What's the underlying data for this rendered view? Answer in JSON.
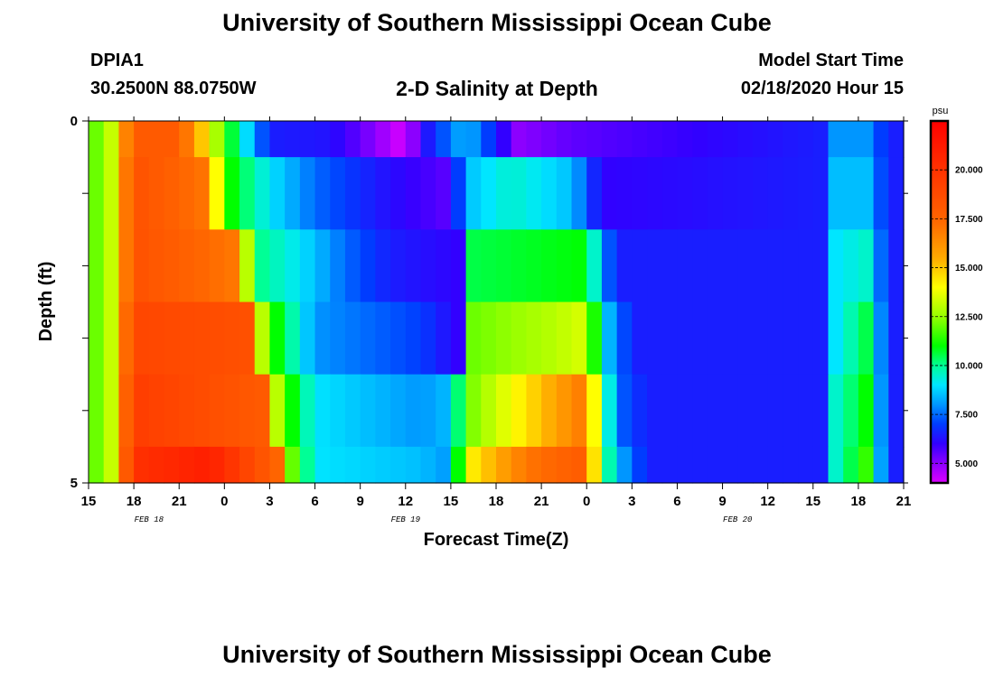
{
  "header": {
    "title": "University of Southern Mississippi Ocean Cube",
    "station": "DPIA1",
    "location": "30.2500N 88.0750W",
    "plot_title": "2-D Salinity at Depth",
    "model_label": "Model Start Time",
    "model_time": "02/18/2020 Hour 15"
  },
  "footer": {
    "title": "University of Southern Mississippi Ocean Cube"
  },
  "chart_data": {
    "type": "heatmap",
    "title": "2-D Salinity at Depth",
    "xlabel": "Forecast Time(Z)",
    "ylabel": "Depth (ft)",
    "x_ticks": [
      "15",
      "18",
      "21",
      "0",
      "3",
      "6",
      "9",
      "12",
      "15",
      "18",
      "21",
      "0",
      "3",
      "6",
      "9",
      "12",
      "15",
      "18",
      "21"
    ],
    "x_date_labels": [
      {
        "label": "FEB 18",
        "at_hour": 4
      },
      {
        "label": "FEB 19",
        "at_hour": 21
      },
      {
        "label": "FEB 20",
        "at_hour": 43
      }
    ],
    "x_range_hours": [
      0,
      54
    ],
    "y_ticks": [
      "0",
      "",
      "",
      "",
      "",
      "5"
    ],
    "ylim": [
      0,
      5
    ],
    "colorbar": {
      "unit": "psu",
      "range": [
        4,
        22.5
      ],
      "ticks": [
        5,
        7.5,
        10,
        12.5,
        15,
        17.5,
        20
      ],
      "tick_labels": [
        "5.000",
        "7.500",
        "10.000",
        "12.500",
        "15.000",
        "17.500",
        "20.000"
      ]
    },
    "rows": [
      {
        "depth": "0-0.5",
        "keys": [
          [
            0,
            11.5
          ],
          [
            1.8,
            13.5
          ],
          [
            2.8,
            18
          ],
          [
            6,
            18
          ],
          [
            8,
            14
          ],
          [
            9,
            11.5
          ],
          [
            11,
            8
          ],
          [
            12,
            6.5
          ],
          [
            16,
            6.3
          ],
          [
            19,
            5
          ],
          [
            21,
            4
          ],
          [
            22,
            6
          ],
          [
            25,
            8.5
          ],
          [
            28.5,
            5
          ],
          [
            32,
            5.5
          ],
          [
            48.5,
            6.5
          ],
          [
            49.5,
            8
          ],
          [
            51.5,
            8
          ],
          [
            53,
            6.5
          ],
          [
            54,
            6.5
          ]
        ]
      },
      {
        "depth": "0.5-1.5",
        "keys": [
          [
            0,
            11.5
          ],
          [
            1.8,
            13.5
          ],
          [
            2.8,
            18.5
          ],
          [
            7.8,
            17
          ],
          [
            8.5,
            14
          ],
          [
            9.5,
            11
          ],
          [
            12,
            9
          ],
          [
            15,
            7.5
          ],
          [
            20,
            6.2
          ],
          [
            24,
            5.5
          ],
          [
            25,
            8.5
          ],
          [
            28,
            9.5
          ],
          [
            32,
            8.5
          ],
          [
            34,
            6
          ],
          [
            48.5,
            6.5
          ],
          [
            49.5,
            8.5
          ],
          [
            51.5,
            8.5
          ],
          [
            53,
            6.5
          ],
          [
            54,
            6.5
          ]
        ]
      },
      {
        "depth": "1.5-2.5",
        "keys": [
          [
            0,
            11.5
          ],
          [
            1.8,
            13.5
          ],
          [
            2.8,
            18.5
          ],
          [
            9.5,
            17
          ],
          [
            10.5,
            13
          ],
          [
            11.5,
            10
          ],
          [
            14,
            9
          ],
          [
            17,
            7.5
          ],
          [
            20,
            6.5
          ],
          [
            24.5,
            6
          ],
          [
            25,
            10.5
          ],
          [
            33,
            11
          ],
          [
            34,
            8
          ],
          [
            35,
            6.5
          ],
          [
            48.5,
            6.5
          ],
          [
            49.5,
            9
          ],
          [
            51.5,
            9.5
          ],
          [
            53,
            6.5
          ],
          [
            54,
            6.5
          ]
        ]
      },
      {
        "depth": "2.5-3.5",
        "keys": [
          [
            0,
            11.5
          ],
          [
            1.8,
            13.5
          ],
          [
            2.8,
            19
          ],
          [
            10.5,
            18.5
          ],
          [
            11.5,
            13
          ],
          [
            12.5,
            11
          ],
          [
            15,
            8
          ],
          [
            22,
            7
          ],
          [
            24.5,
            6
          ],
          [
            25,
            12
          ],
          [
            31,
            13
          ],
          [
            33,
            13.5
          ],
          [
            34,
            9
          ],
          [
            36,
            6.5
          ],
          [
            48.5,
            6.5
          ],
          [
            49.5,
            9
          ],
          [
            51.5,
            10.5
          ],
          [
            53,
            6.5
          ],
          [
            54,
            6.5
          ]
        ]
      },
      {
        "depth": "3.5-4.5",
        "keys": [
          [
            0,
            11.5
          ],
          [
            1.8,
            13.5
          ],
          [
            2.8,
            19.5
          ],
          [
            11.5,
            18
          ],
          [
            12.5,
            13
          ],
          [
            13.5,
            11
          ],
          [
            15,
            9
          ],
          [
            22,
            8
          ],
          [
            24,
            8.5
          ],
          [
            25,
            12
          ],
          [
            29,
            14.5
          ],
          [
            33,
            17
          ],
          [
            34,
            11
          ],
          [
            35,
            7.5
          ],
          [
            37,
            6.5
          ],
          [
            48.5,
            6.5
          ],
          [
            49.5,
            9.5
          ],
          [
            51.5,
            11
          ],
          [
            53,
            6.5
          ],
          [
            54,
            6.5
          ]
        ]
      },
      {
        "depth": "4.5-5",
        "keys": [
          [
            0,
            11.5
          ],
          [
            1.8,
            13.5
          ],
          [
            2.8,
            20
          ],
          [
            8,
            21
          ],
          [
            12.5,
            17.5
          ],
          [
            13.5,
            12
          ],
          [
            15,
            9
          ],
          [
            22,
            8.5
          ],
          [
            24,
            8
          ],
          [
            25,
            14
          ],
          [
            29,
            17
          ],
          [
            33,
            18
          ],
          [
            34,
            11
          ],
          [
            35,
            8.5
          ],
          [
            37,
            6.5
          ],
          [
            48.5,
            6.5
          ],
          [
            49.5,
            9.5
          ],
          [
            51.5,
            11.5
          ],
          [
            53,
            6.5
          ],
          [
            54,
            6.5
          ]
        ]
      }
    ]
  }
}
